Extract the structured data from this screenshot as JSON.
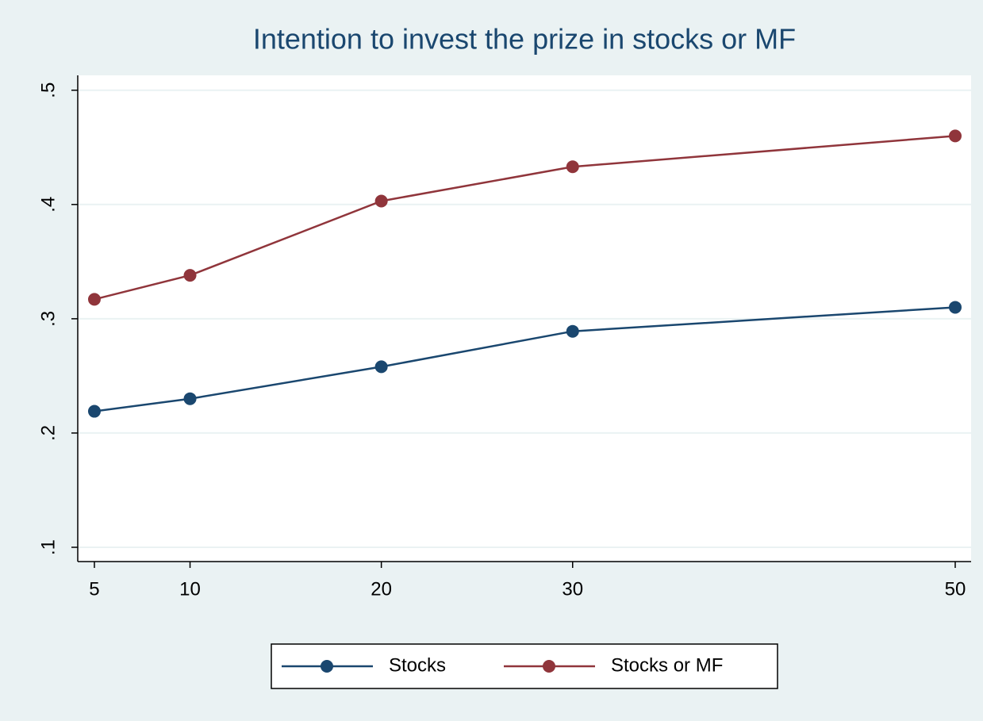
{
  "chart_data": {
    "type": "line",
    "title": "Intention to invest the prize in stocks or MF",
    "x": [
      5,
      10,
      20,
      30,
      50
    ],
    "series": [
      {
        "name": "Stocks",
        "color": "#1a476f",
        "values": [
          0.219,
          0.23,
          0.258,
          0.289,
          0.31
        ]
      },
      {
        "name": "Stocks or MF",
        "color": "#90353b",
        "values": [
          0.317,
          0.338,
          0.403,
          0.433,
          0.46
        ]
      }
    ],
    "xlim": [
      4.13,
      50.83
    ],
    "xticks": [
      5,
      10,
      20,
      30,
      50
    ],
    "ylim": [
      0.0875,
      0.513
    ],
    "yticks": [
      {
        "value": 0.1,
        "label": ".1"
      },
      {
        "value": 0.2,
        "label": ".2"
      },
      {
        "value": 0.3,
        "label": ".3"
      },
      {
        "value": 0.4,
        "label": ".4"
      },
      {
        "value": 0.5,
        "label": ".5"
      }
    ],
    "grid": true,
    "legend": "bottom"
  }
}
